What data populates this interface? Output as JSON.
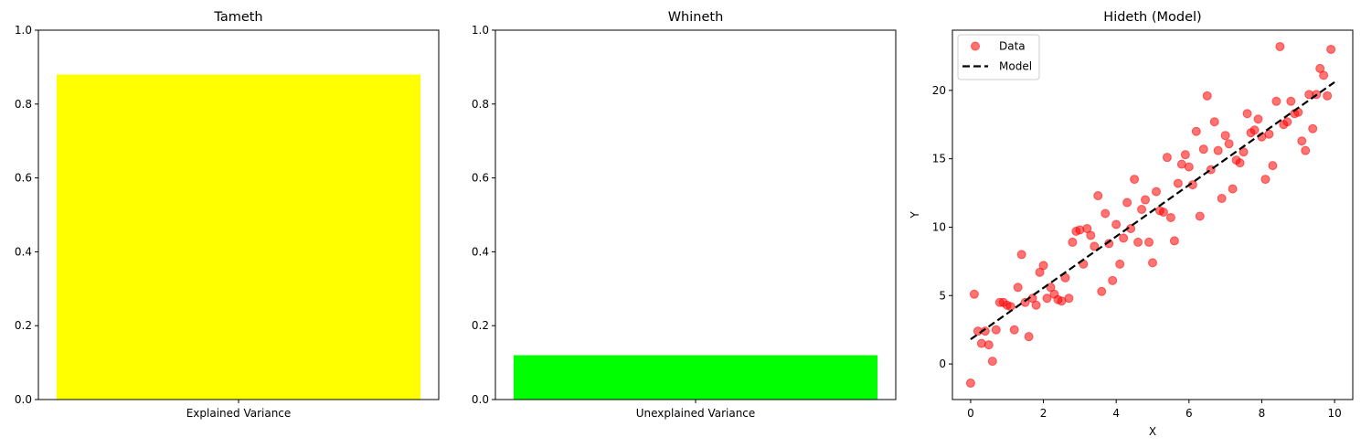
{
  "chart_data": [
    {
      "type": "bar",
      "title": "Tameth",
      "categories": [
        "Explained Variance"
      ],
      "values": [
        0.88
      ],
      "ylim": [
        0,
        1
      ],
      "yticks": [
        "0.0",
        "0.2",
        "0.4",
        "0.6",
        "0.8",
        "1.0"
      ],
      "color": "#ffff00",
      "xlabel": "",
      "ylabel": ""
    },
    {
      "type": "bar",
      "title": "Whineth",
      "categories": [
        "Unexplained Variance"
      ],
      "values": [
        0.12
      ],
      "ylim": [
        0,
        1
      ],
      "yticks": [
        "0.0",
        "0.2",
        "0.4",
        "0.6",
        "0.8",
        "1.0"
      ],
      "color": "#00ff00",
      "xlabel": "",
      "ylabel": ""
    },
    {
      "type": "scatter",
      "title": "Hideth (Model)",
      "xlabel": "X",
      "ylabel": "Y",
      "xlim": [
        -0.5,
        10.5
      ],
      "ylim": [
        -2.6,
        24.4
      ],
      "xticks": [
        0,
        2,
        4,
        6,
        8,
        10
      ],
      "yticks": [
        0,
        5,
        10,
        15,
        20
      ],
      "legend": {
        "position": "top-left",
        "entries": [
          "Data",
          "Model"
        ]
      },
      "series": [
        {
          "name": "Data",
          "color": "#ff0000",
          "points": [
            [
              0.0,
              -1.4
            ],
            [
              0.1,
              5.1
            ],
            [
              0.2,
              2.4
            ],
            [
              0.3,
              1.5
            ],
            [
              0.4,
              2.4
            ],
            [
              0.5,
              1.4
            ],
            [
              0.6,
              0.2
            ],
            [
              0.7,
              2.5
            ],
            [
              0.8,
              4.5
            ],
            [
              0.9,
              4.5
            ],
            [
              1.0,
              4.3
            ],
            [
              1.1,
              4.2
            ],
            [
              1.2,
              2.5
            ],
            [
              1.3,
              5.6
            ],
            [
              1.4,
              8.0
            ],
            [
              1.5,
              4.5
            ],
            [
              1.6,
              2.0
            ],
            [
              1.7,
              4.8
            ],
            [
              1.8,
              4.3
            ],
            [
              1.9,
              6.7
            ],
            [
              2.0,
              7.2
            ],
            [
              2.1,
              4.8
            ],
            [
              2.2,
              5.6
            ],
            [
              2.3,
              5.1
            ],
            [
              2.4,
              4.7
            ],
            [
              2.5,
              4.6
            ],
            [
              2.6,
              6.3
            ],
            [
              2.7,
              4.8
            ],
            [
              2.8,
              8.9
            ],
            [
              2.9,
              9.7
            ],
            [
              3.0,
              9.8
            ],
            [
              3.1,
              7.3
            ],
            [
              3.2,
              9.9
            ],
            [
              3.3,
              9.4
            ],
            [
              3.4,
              8.6
            ],
            [
              3.5,
              12.3
            ],
            [
              3.6,
              5.3
            ],
            [
              3.7,
              11.0
            ],
            [
              3.8,
              8.8
            ],
            [
              3.9,
              6.1
            ],
            [
              4.0,
              10.2
            ],
            [
              4.1,
              7.3
            ],
            [
              4.2,
              9.2
            ],
            [
              4.3,
              11.8
            ],
            [
              4.4,
              9.9
            ],
            [
              4.5,
              13.5
            ],
            [
              4.6,
              8.9
            ],
            [
              4.7,
              11.3
            ],
            [
              4.8,
              12.0
            ],
            [
              4.9,
              8.9
            ],
            [
              5.0,
              7.4
            ],
            [
              5.1,
              12.6
            ],
            [
              5.2,
              11.2
            ],
            [
              5.3,
              11.1
            ],
            [
              5.4,
              15.1
            ],
            [
              5.5,
              10.7
            ],
            [
              5.6,
              9.0
            ],
            [
              5.7,
              13.2
            ],
            [
              5.8,
              14.6
            ],
            [
              5.9,
              15.3
            ],
            [
              6.0,
              14.4
            ],
            [
              6.1,
              13.1
            ],
            [
              6.2,
              17.0
            ],
            [
              6.3,
              10.8
            ],
            [
              6.4,
              15.7
            ],
            [
              6.5,
              19.6
            ],
            [
              6.6,
              14.2
            ],
            [
              6.7,
              17.7
            ],
            [
              6.8,
              15.6
            ],
            [
              6.9,
              12.1
            ],
            [
              7.0,
              16.7
            ],
            [
              7.1,
              16.1
            ],
            [
              7.2,
              12.8
            ],
            [
              7.3,
              14.9
            ],
            [
              7.4,
              14.7
            ],
            [
              7.5,
              15.5
            ],
            [
              7.6,
              18.3
            ],
            [
              7.7,
              16.9
            ],
            [
              7.8,
              17.1
            ],
            [
              7.9,
              17.9
            ],
            [
              8.0,
              16.6
            ],
            [
              8.1,
              13.5
            ],
            [
              8.2,
              16.8
            ],
            [
              8.3,
              14.5
            ],
            [
              8.4,
              19.2
            ],
            [
              8.5,
              23.2
            ],
            [
              8.6,
              17.5
            ],
            [
              8.7,
              17.7
            ],
            [
              8.8,
              19.2
            ],
            [
              8.9,
              18.3
            ],
            [
              9.0,
              18.4
            ],
            [
              9.1,
              16.3
            ],
            [
              9.2,
              15.6
            ],
            [
              9.3,
              19.7
            ],
            [
              9.4,
              17.2
            ],
            [
              9.5,
              19.7
            ],
            [
              9.6,
              21.6
            ],
            [
              9.7,
              21.1
            ],
            [
              9.8,
              19.6
            ],
            [
              9.9,
              23.0
            ]
          ]
        },
        {
          "name": "Model",
          "color": "#000000",
          "line": [
            [
              0,
              1.8
            ],
            [
              10,
              20.6
            ]
          ]
        }
      ]
    }
  ]
}
